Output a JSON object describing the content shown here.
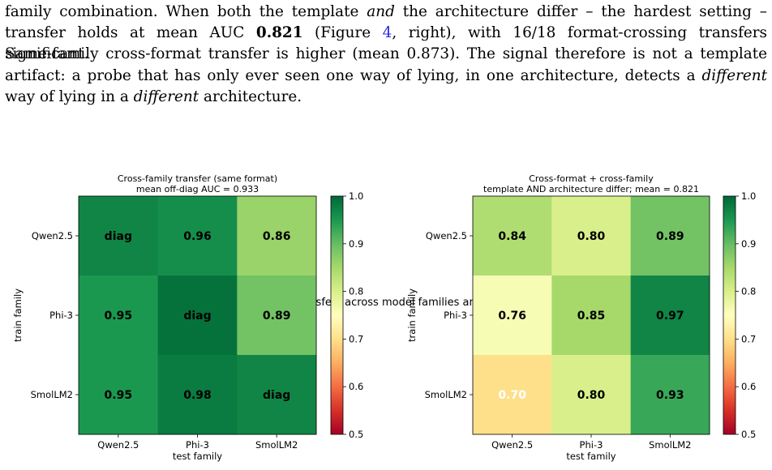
{
  "paragraph": {
    "line1": {
      "a": "family combination. When both the template ",
      "b": "and",
      "c": " the architecture differ – the hardest setting –"
    },
    "line2": {
      "a": "transfer holds at mean AUC ",
      "b": "0.821",
      "c": " (Figure ",
      "d": "4",
      "e": ", right), with 16/18 format-crossing transfers significant."
    },
    "line3": {
      "a": "Same-family cross-format transfer is higher (mean 0.873). The signal therefore is not a template"
    },
    "line4": {
      "a": "artifact: a probe that has only ever seen one way of lying, in one architecture, detects a ",
      "b": "different"
    },
    "line5": {
      "a": "way of lying in a ",
      "b": "different",
      "c": " architecture."
    }
  },
  "figure": {
    "suptitle": "A linear deception probe transfers across model families and elicitation formats"
  },
  "colors": {
    "cmap": "RdYlGn",
    "dark_text": "#000000",
    "light_text": "#ffffff"
  },
  "chart_data": [
    {
      "type": "heatmap",
      "title": "Cross-family transfer (same format)",
      "subtitle": "mean off-diag AUC = 0.933",
      "xlabel": "test family",
      "ylabel": "train family",
      "x_categories": [
        "Qwen2.5",
        "Phi-3",
        "SmolLM2"
      ],
      "y_categories": [
        "Qwen2.5",
        "Phi-3",
        "SmolLM2"
      ],
      "values": [
        [
          0.97,
          0.96,
          0.86
        ],
        [
          0.95,
          0.99,
          0.89
        ],
        [
          0.95,
          0.98,
          0.97
        ]
      ],
      "labels": [
        [
          "diag",
          "0.96",
          "0.86"
        ],
        [
          "0.95",
          "diag",
          "0.89"
        ],
        [
          "0.95",
          "0.98",
          "diag"
        ]
      ],
      "colorbar": {
        "range": [
          0.5,
          1.0
        ],
        "ticks": [
          "0.5",
          "0.6",
          "0.7",
          "0.8",
          "0.9",
          "1.0"
        ]
      }
    },
    {
      "type": "heatmap",
      "title": "Cross-format + cross-family",
      "subtitle": "template AND architecture differ; mean = 0.821",
      "xlabel": "test family",
      "ylabel": "train family",
      "x_categories": [
        "Qwen2.5",
        "Phi-3",
        "SmolLM2"
      ],
      "y_categories": [
        "Qwen2.5",
        "Phi-3",
        "SmolLM2"
      ],
      "values": [
        [
          0.84,
          0.8,
          0.89
        ],
        [
          0.76,
          0.85,
          0.97
        ],
        [
          0.7,
          0.8,
          0.93
        ]
      ],
      "labels": [
        [
          "0.84",
          "0.80",
          "0.89"
        ],
        [
          "0.76",
          "0.85",
          "0.97"
        ],
        [
          "0.70",
          "0.80",
          "0.93"
        ]
      ],
      "colorbar": {
        "range": [
          0.5,
          1.0
        ],
        "ticks": [
          "0.5",
          "0.6",
          "0.7",
          "0.8",
          "0.9",
          "1.0"
        ]
      }
    }
  ]
}
